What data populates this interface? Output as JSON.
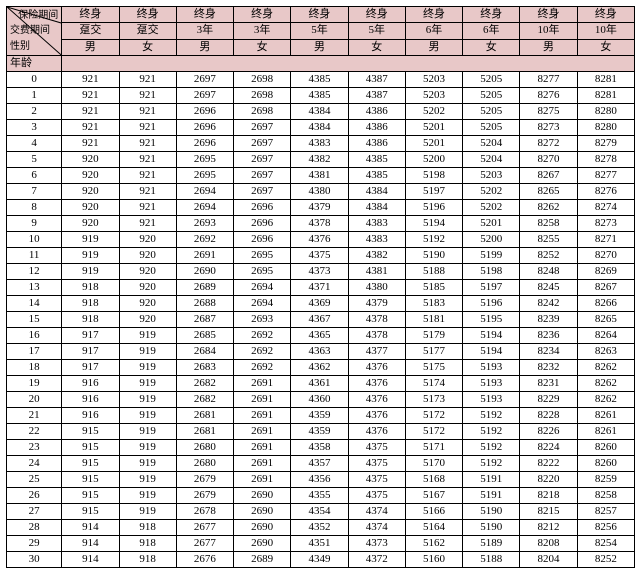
{
  "header": {
    "corner_top": "保险期间",
    "corner_mid": "交费期间",
    "corner_bot": "性别",
    "age_label": "年龄",
    "ins_periods": [
      "终身",
      "终身",
      "终身",
      "终身",
      "终身",
      "终身",
      "终身",
      "终身",
      "终身",
      "终身"
    ],
    "pay_periods": [
      "趸交",
      "趸交",
      "3年",
      "3年",
      "5年",
      "5年",
      "6年",
      "6年",
      "10年",
      "10年"
    ],
    "genders": [
      "男",
      "女",
      "男",
      "女",
      "男",
      "女",
      "男",
      "女",
      "男",
      "女"
    ]
  },
  "rows": [
    {
      "age": "0",
      "v": [
        "921",
        "921",
        "2697",
        "2698",
        "4385",
        "4387",
        "5203",
        "5205",
        "8277",
        "8281"
      ]
    },
    {
      "age": "1",
      "v": [
        "921",
        "921",
        "2697",
        "2698",
        "4385",
        "4387",
        "5203",
        "5205",
        "8276",
        "8281"
      ]
    },
    {
      "age": "2",
      "v": [
        "921",
        "921",
        "2696",
        "2698",
        "4384",
        "4386",
        "5202",
        "5205",
        "8275",
        "8280"
      ]
    },
    {
      "age": "3",
      "v": [
        "921",
        "921",
        "2696",
        "2697",
        "4384",
        "4386",
        "5201",
        "5205",
        "8273",
        "8280"
      ]
    },
    {
      "age": "4",
      "v": [
        "921",
        "921",
        "2696",
        "2697",
        "4383",
        "4386",
        "5201",
        "5204",
        "8272",
        "8279"
      ]
    },
    {
      "age": "5",
      "v": [
        "920",
        "921",
        "2695",
        "2697",
        "4382",
        "4385",
        "5200",
        "5204",
        "8270",
        "8278"
      ]
    },
    {
      "age": "6",
      "v": [
        "920",
        "921",
        "2695",
        "2697",
        "4381",
        "4385",
        "5198",
        "5203",
        "8267",
        "8277"
      ]
    },
    {
      "age": "7",
      "v": [
        "920",
        "921",
        "2694",
        "2697",
        "4380",
        "4384",
        "5197",
        "5202",
        "8265",
        "8276"
      ]
    },
    {
      "age": "8",
      "v": [
        "920",
        "921",
        "2694",
        "2696",
        "4379",
        "4384",
        "5196",
        "5202",
        "8262",
        "8274"
      ]
    },
    {
      "age": "9",
      "v": [
        "920",
        "921",
        "2693",
        "2696",
        "4378",
        "4383",
        "5194",
        "5201",
        "8258",
        "8273"
      ]
    },
    {
      "age": "10",
      "v": [
        "919",
        "920",
        "2692",
        "2696",
        "4376",
        "4383",
        "5192",
        "5200",
        "8255",
        "8271"
      ]
    },
    {
      "age": "11",
      "v": [
        "919",
        "920",
        "2691",
        "2695",
        "4375",
        "4382",
        "5190",
        "5199",
        "8252",
        "8270"
      ]
    },
    {
      "age": "12",
      "v": [
        "919",
        "920",
        "2690",
        "2695",
        "4373",
        "4381",
        "5188",
        "5198",
        "8248",
        "8269"
      ]
    },
    {
      "age": "13",
      "v": [
        "918",
        "920",
        "2689",
        "2694",
        "4371",
        "4380",
        "5185",
        "5197",
        "8245",
        "8267"
      ]
    },
    {
      "age": "14",
      "v": [
        "918",
        "920",
        "2688",
        "2694",
        "4369",
        "4379",
        "5183",
        "5196",
        "8242",
        "8266"
      ]
    },
    {
      "age": "15",
      "v": [
        "918",
        "920",
        "2687",
        "2693",
        "4367",
        "4378",
        "5181",
        "5195",
        "8239",
        "8265"
      ]
    },
    {
      "age": "16",
      "v": [
        "917",
        "919",
        "2685",
        "2692",
        "4365",
        "4378",
        "5179",
        "5194",
        "8236",
        "8264"
      ]
    },
    {
      "age": "17",
      "v": [
        "917",
        "919",
        "2684",
        "2692",
        "4363",
        "4377",
        "5177",
        "5194",
        "8234",
        "8263"
      ]
    },
    {
      "age": "18",
      "v": [
        "917",
        "919",
        "2683",
        "2692",
        "4362",
        "4376",
        "5175",
        "5193",
        "8232",
        "8262"
      ]
    },
    {
      "age": "19",
      "v": [
        "916",
        "919",
        "2682",
        "2691",
        "4361",
        "4376",
        "5174",
        "5193",
        "8231",
        "8262"
      ]
    },
    {
      "age": "20",
      "v": [
        "916",
        "919",
        "2682",
        "2691",
        "4360",
        "4376",
        "5173",
        "5193",
        "8229",
        "8262"
      ]
    },
    {
      "age": "21",
      "v": [
        "916",
        "919",
        "2681",
        "2691",
        "4359",
        "4376",
        "5172",
        "5192",
        "8228",
        "8261"
      ]
    },
    {
      "age": "22",
      "v": [
        "915",
        "919",
        "2681",
        "2691",
        "4359",
        "4376",
        "5172",
        "5192",
        "8226",
        "8261"
      ]
    },
    {
      "age": "23",
      "v": [
        "915",
        "919",
        "2680",
        "2691",
        "4358",
        "4375",
        "5171",
        "5192",
        "8224",
        "8260"
      ]
    },
    {
      "age": "24",
      "v": [
        "915",
        "919",
        "2680",
        "2691",
        "4357",
        "4375",
        "5170",
        "5192",
        "8222",
        "8260"
      ]
    },
    {
      "age": "25",
      "v": [
        "915",
        "919",
        "2679",
        "2691",
        "4356",
        "4375",
        "5168",
        "5191",
        "8220",
        "8259"
      ]
    },
    {
      "age": "26",
      "v": [
        "915",
        "919",
        "2679",
        "2690",
        "4355",
        "4375",
        "5167",
        "5191",
        "8218",
        "8258"
      ]
    },
    {
      "age": "27",
      "v": [
        "915",
        "919",
        "2678",
        "2690",
        "4354",
        "4374",
        "5166",
        "5190",
        "8215",
        "8257"
      ]
    },
    {
      "age": "28",
      "v": [
        "914",
        "918",
        "2677",
        "2690",
        "4352",
        "4374",
        "5164",
        "5190",
        "8212",
        "8256"
      ]
    },
    {
      "age": "29",
      "v": [
        "914",
        "918",
        "2677",
        "2690",
        "4351",
        "4373",
        "5162",
        "5189",
        "8208",
        "8254"
      ]
    },
    {
      "age": "30",
      "v": [
        "914",
        "918",
        "2676",
        "2689",
        "4349",
        "4372",
        "5160",
        "5188",
        "8204",
        "8252"
      ]
    }
  ],
  "style": {
    "header_bg": "#e8c8c8",
    "body_bg": "#ffffff",
    "border_color": "#000000",
    "font_family": "SimSun",
    "font_size": 11
  }
}
